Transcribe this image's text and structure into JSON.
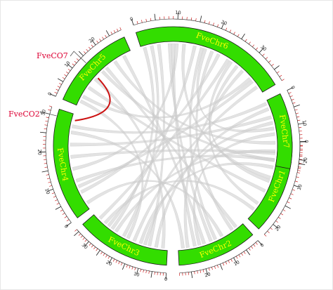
{
  "colors": {
    "chromosome_fill": "#33dd00",
    "chromosome_stroke": "#1a1a1a",
    "chromosome_label": "#ffff00",
    "major_tick": "#1a1a1a",
    "minor_tick": "#cc2222",
    "background_link": "#cccccc",
    "highlight_link": "#cc1111",
    "gene_label": "#dd0033",
    "gene_pointer": "#555555"
  },
  "chromosomes": [
    {
      "name": "FveChr1",
      "length": 23,
      "tick_labels": [
        "0",
        "10",
        "20"
      ]
    },
    {
      "name": "FveChr2",
      "length": 29,
      "tick_labels": [
        "0",
        "10",
        "20"
      ]
    },
    {
      "name": "FveChr3",
      "length": 36,
      "tick_labels": [
        "0",
        "10",
        "20",
        "30"
      ]
    },
    {
      "name": "FveChr4",
      "length": 32,
      "tick_labels": [
        "0",
        "10",
        "20",
        "30"
      ]
    },
    {
      "name": "FveChr5",
      "length": 29,
      "tick_labels": [
        "0",
        "10",
        "20"
      ]
    },
    {
      "name": "FveChr6",
      "length": 38,
      "tick_labels": [
        "0",
        "10",
        "20",
        "30"
      ]
    },
    {
      "name": "FveChr7",
      "length": 23,
      "tick_labels": [
        "0",
        "10",
        "20"
      ]
    }
  ],
  "genes": [
    {
      "name": "FveCO7",
      "chromosome": "FveChr5",
      "position": 14
    },
    {
      "name": "FveCO2",
      "chromosome": "FveChr4",
      "position": 30
    }
  ],
  "highlight_links": [
    {
      "from_chromosome": "FveChr5",
      "from_position": 13,
      "to_chromosome": "FveChr4",
      "to_position": 30
    }
  ],
  "background_links": [
    {
      "a": [
        "FveChr6",
        3
      ],
      "b": [
        "FveChr3",
        20
      ]
    },
    {
      "a": [
        "FveChr6",
        5
      ],
      "b": [
        "FveChr3",
        8
      ]
    },
    {
      "a": [
        "FveChr6",
        8
      ],
      "b": [
        "FveChr2",
        15
      ]
    },
    {
      "a": [
        "FveChr6",
        10
      ],
      "b": [
        "FveChr4",
        14
      ]
    },
    {
      "a": [
        "FveChr6",
        12
      ],
      "b": [
        "FveChr1",
        10
      ]
    },
    {
      "a": [
        "FveChr6",
        15
      ],
      "b": [
        "FveChr3",
        28
      ]
    },
    {
      "a": [
        "FveChr6",
        18
      ],
      "b": [
        "FveChr7",
        10
      ]
    },
    {
      "a": [
        "FveChr6",
        20
      ],
      "b": [
        "FveChr2",
        5
      ]
    },
    {
      "a": [
        "FveChr6",
        22
      ],
      "b": [
        "FveChr4",
        6
      ]
    },
    {
      "a": [
        "FveChr6",
        25
      ],
      "b": [
        "FveChr3",
        33
      ]
    },
    {
      "a": [
        "FveChr6",
        28
      ],
      "b": [
        "FveChr1",
        18
      ]
    },
    {
      "a": [
        "FveChr6",
        30
      ],
      "b": [
        "FveChr2",
        25
      ]
    },
    {
      "a": [
        "FveChr6",
        33
      ],
      "b": [
        "FveChr5",
        4
      ]
    },
    {
      "a": [
        "FveChr6",
        36
      ],
      "b": [
        "FveChr3",
        15
      ]
    },
    {
      "a": [
        "FveChr7",
        3
      ],
      "b": [
        "FveChr3",
        5
      ]
    },
    {
      "a": [
        "FveChr7",
        6
      ],
      "b": [
        "FveChr4",
        22
      ]
    },
    {
      "a": [
        "FveChr7",
        12
      ],
      "b": [
        "FveChr2",
        20
      ]
    },
    {
      "a": [
        "FveChr7",
        15
      ],
      "b": [
        "FveChr5",
        22
      ]
    },
    {
      "a": [
        "FveChr7",
        18
      ],
      "b": [
        "FveChr3",
        24
      ]
    },
    {
      "a": [
        "FveChr7",
        21
      ],
      "b": [
        "FveChr4",
        10
      ]
    },
    {
      "a": [
        "FveChr1",
        3
      ],
      "b": [
        "FveChr4",
        18
      ]
    },
    {
      "a": [
        "FveChr1",
        7
      ],
      "b": [
        "FveChr3",
        12
      ]
    },
    {
      "a": [
        "FveChr1",
        14
      ],
      "b": [
        "FveChr5",
        8
      ]
    },
    {
      "a": [
        "FveChr1",
        20
      ],
      "b": [
        "FveChr3",
        30
      ]
    },
    {
      "a": [
        "FveChr2",
        3
      ],
      "b": [
        "FveChr5",
        18
      ]
    },
    {
      "a": [
        "FveChr2",
        10
      ],
      "b": [
        "FveChr4",
        2
      ]
    },
    {
      "a": [
        "FveChr2",
        18
      ],
      "b": [
        "FveChr5",
        26
      ]
    },
    {
      "a": [
        "FveChr2",
        27
      ],
      "b": [
        "FveChr4",
        26
      ]
    },
    {
      "a": [
        "FveChr3",
        2
      ],
      "b": [
        "FveChr5",
        12
      ]
    },
    {
      "a": [
        "FveChr3",
        18
      ],
      "b": [
        "FveChr5",
        2
      ]
    },
    {
      "a": [
        "FveChr4",
        8
      ],
      "b": [
        "FveChr6",
        34
      ]
    },
    {
      "a": [
        "FveChr3",
        26
      ],
      "b": [
        "FveChr6",
        1
      ]
    },
    {
      "a": [
        "FveChr2",
        13
      ],
      "b": [
        "FveChr6",
        17
      ]
    },
    {
      "a": [
        "FveChr1",
        11
      ],
      "b": [
        "FveChr6",
        26
      ]
    },
    {
      "a": [
        "FveChr4",
        28
      ],
      "b": [
        "FveChr7",
        1
      ]
    },
    {
      "a": [
        "FveChr5",
        16
      ],
      "b": [
        "FveChr1",
        5
      ]
    },
    {
      "a": [
        "FveChr3",
        10
      ],
      "b": [
        "FveChr7",
        8
      ]
    },
    {
      "a": [
        "FveChr2",
        22
      ],
      "b": [
        "FveChr6",
        9
      ]
    }
  ]
}
